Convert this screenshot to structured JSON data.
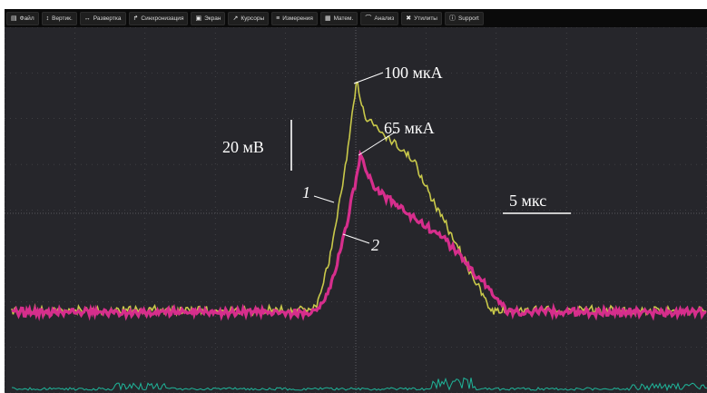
{
  "menu": [
    {
      "icon_name": "file-icon",
      "icon": "▤",
      "label": "Файл"
    },
    {
      "icon_name": "vertical-icon",
      "icon": "↕",
      "label": "Вертик."
    },
    {
      "icon_name": "horizontal-icon",
      "icon": "↔",
      "label": "Развертка"
    },
    {
      "icon_name": "trigger-icon",
      "icon": "↱",
      "label": "Синхронизация"
    },
    {
      "icon_name": "display-icon",
      "icon": "▣",
      "label": "Экран"
    },
    {
      "icon_name": "cursor-icon",
      "icon": "↗",
      "label": "Курсоры"
    },
    {
      "icon_name": "measure-icon",
      "icon": "≡",
      "label": "Измерения"
    },
    {
      "icon_name": "math-icon",
      "icon": "▦",
      "label": "Матем."
    },
    {
      "icon_name": "analysis-icon",
      "icon": "⌒",
      "label": "Анализ"
    },
    {
      "icon_name": "utilities-icon",
      "icon": "✖",
      "label": "Утилиты"
    },
    {
      "icon_name": "support-icon",
      "icon": "ⓘ",
      "label": "Support"
    }
  ],
  "annotations": {
    "peak_1": "100 мкА",
    "peak_2": "65 мкА",
    "scale_v": "20 мВ",
    "scale_t": "5 мкс",
    "trace_1": "1",
    "trace_2": "2"
  },
  "colors": {
    "trace_1": "#c9c94a",
    "trace_2": "#d62e8c",
    "trace_3": "#1fb59a",
    "grid": "#55555a",
    "background": "#26262b"
  }
}
